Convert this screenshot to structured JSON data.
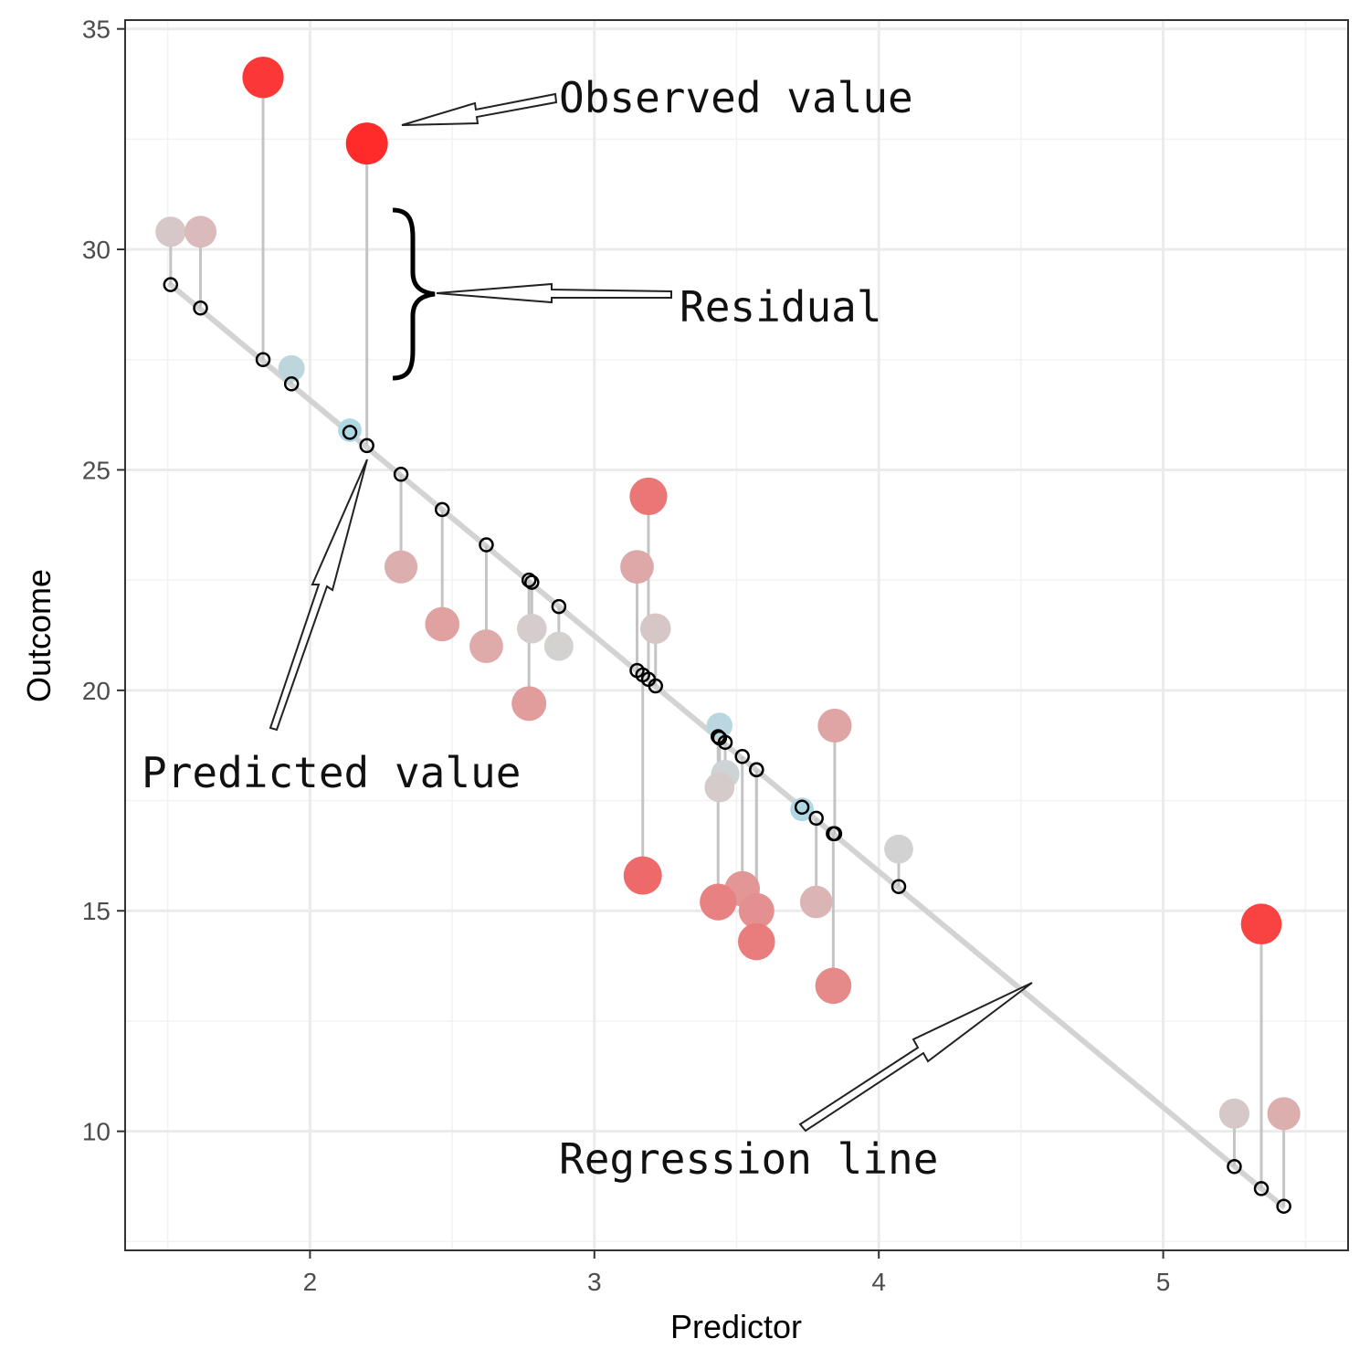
{
  "chart_data": {
    "type": "scatter",
    "xlabel": "Predictor",
    "ylabel": "Outcome",
    "xlim": [
      1.35,
      5.65
    ],
    "ylim": [
      7.3,
      35.2
    ],
    "x_ticks": [
      2,
      3,
      4,
      5
    ],
    "y_ticks": [
      10,
      15,
      20,
      25,
      30,
      35
    ],
    "grid": true,
    "regression_line": {
      "x": [
        1.51,
        5.42
      ],
      "y": [
        29.2,
        8.3
      ]
    },
    "point_colors": {
      "low": "#add8e6",
      "mid": "#d3d3d3",
      "high": "#ff2a2a"
    },
    "points": [
      {
        "x": 1.51,
        "observed": 30.4,
        "predicted": 29.2
      },
      {
        "x": 1.615,
        "observed": 30.4,
        "predicted": 28.67
      },
      {
        "x": 1.835,
        "observed": 33.9,
        "predicted": 27.5
      },
      {
        "x": 1.935,
        "observed": 27.3,
        "predicted": 26.95
      },
      {
        "x": 2.14,
        "observed": 25.9,
        "predicted": 25.85
      },
      {
        "x": 2.2,
        "observed": 32.4,
        "predicted": 25.55
      },
      {
        "x": 2.32,
        "observed": 22.8,
        "predicted": 24.9
      },
      {
        "x": 2.465,
        "observed": 21.5,
        "predicted": 24.1
      },
      {
        "x": 2.62,
        "observed": 21.0,
        "predicted": 23.3
      },
      {
        "x": 2.77,
        "observed": 19.7,
        "predicted": 22.5
      },
      {
        "x": 2.78,
        "observed": 21.4,
        "predicted": 22.45
      },
      {
        "x": 2.875,
        "observed": 21.0,
        "predicted": 21.9
      },
      {
        "x": 3.15,
        "observed": 22.8,
        "predicted": 20.45
      },
      {
        "x": 3.17,
        "observed": 15.8,
        "predicted": 20.35
      },
      {
        "x": 3.19,
        "observed": 24.4,
        "predicted": 20.25
      },
      {
        "x": 3.215,
        "observed": 21.4,
        "predicted": 20.1
      },
      {
        "x": 3.435,
        "observed": 15.2,
        "predicted": 18.95
      },
      {
        "x": 3.44,
        "observed": 19.2,
        "predicted": 18.92
      },
      {
        "x": 3.44,
        "observed": 17.8,
        "predicted": 18.92
      },
      {
        "x": 3.46,
        "observed": 18.1,
        "predicted": 18.82
      },
      {
        "x": 3.52,
        "observed": 15.5,
        "predicted": 18.5
      },
      {
        "x": 3.57,
        "observed": 14.3,
        "predicted": 18.2
      },
      {
        "x": 3.57,
        "observed": 15.0,
        "predicted": 18.2
      },
      {
        "x": 3.73,
        "observed": 17.3,
        "predicted": 17.35
      },
      {
        "x": 3.78,
        "observed": 15.2,
        "predicted": 17.1
      },
      {
        "x": 3.84,
        "observed": 13.3,
        "predicted": 16.75
      },
      {
        "x": 3.845,
        "observed": 19.2,
        "predicted": 16.75
      },
      {
        "x": 4.07,
        "observed": 16.4,
        "predicted": 15.55
      },
      {
        "x": 5.25,
        "observed": 10.4,
        "predicted": 9.2
      },
      {
        "x": 5.345,
        "observed": 14.7,
        "predicted": 8.7
      },
      {
        "x": 5.424,
        "observed": 10.4,
        "predicted": 8.3
      }
    ],
    "annotations": [
      {
        "id": "observed",
        "text": "Observed value",
        "tip": [
          2.28,
          32.7
        ]
      },
      {
        "id": "residual",
        "text": "Residual",
        "tip": [
          2.4,
          29.1
        ]
      },
      {
        "id": "predicted",
        "text": "Predicted value",
        "tip": [
          2.17,
          25.1
        ]
      },
      {
        "id": "regression",
        "text": "Regression line",
        "tip": [
          4.5,
          13.2
        ]
      }
    ]
  }
}
